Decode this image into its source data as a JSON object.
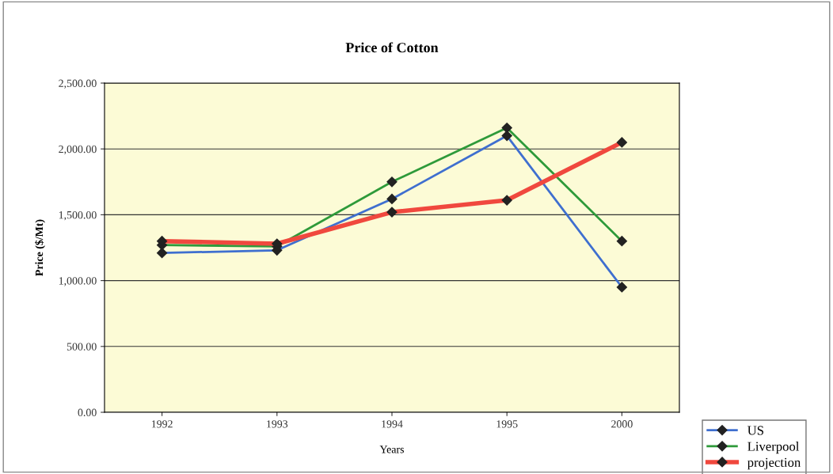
{
  "chart_data": {
    "type": "line",
    "title": "Price of Cotton",
    "xlabel": "Years",
    "ylabel": "Price ($/Mt)",
    "categories": [
      "1992",
      "1993",
      "1994",
      "1995",
      "2000"
    ],
    "series": [
      {
        "name": "US",
        "color": "#3f6fcf",
        "values": [
          1210,
          1230,
          1620,
          2100,
          950
        ]
      },
      {
        "name": "Liverpool",
        "color": "#2e9a3a",
        "values": [
          1270,
          1260,
          1750,
          2160,
          1300
        ]
      },
      {
        "name": "projection",
        "color": "#f0483e",
        "values": [
          1300,
          1280,
          1520,
          1610,
          2050
        ]
      }
    ],
    "ylim": [
      0,
      2500
    ],
    "yticks": [
      {
        "value": 0,
        "label": "0.00"
      },
      {
        "value": 500,
        "label": "500.00"
      },
      {
        "value": 1000,
        "label": "1,000.00"
      },
      {
        "value": 1500,
        "label": "1,500.00"
      },
      {
        "value": 2000,
        "label": "2,000.00"
      },
      {
        "value": 2500,
        "label": "2,500.00"
      }
    ],
    "grid": "y",
    "legend": "bottom right",
    "marker": "diamond",
    "line_style": "solid"
  }
}
